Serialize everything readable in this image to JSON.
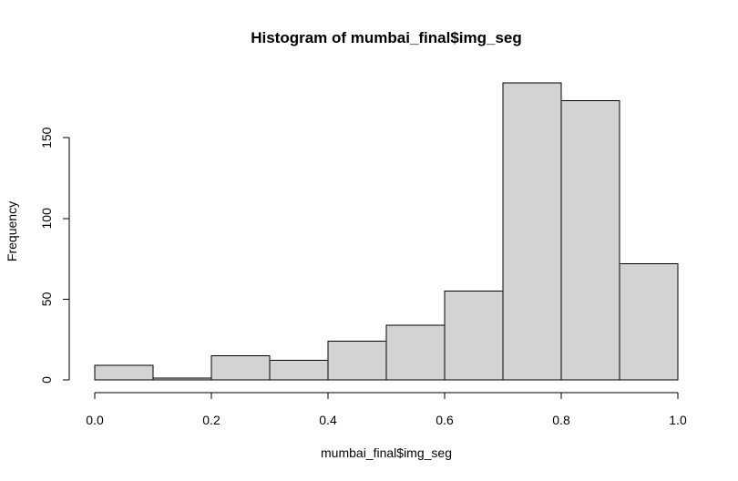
{
  "chart_data": {
    "type": "bar",
    "title": "Histogram of mumbai_final$img_seg",
    "xlabel": "mumbai_final$img_seg",
    "ylabel": "Frequency",
    "bins": [
      {
        "x0": 0.0,
        "x1": 0.1,
        "count": 9
      },
      {
        "x0": 0.1,
        "x1": 0.2,
        "count": 1
      },
      {
        "x0": 0.2,
        "x1": 0.3,
        "count": 15
      },
      {
        "x0": 0.3,
        "x1": 0.4,
        "count": 12
      },
      {
        "x0": 0.4,
        "x1": 0.5,
        "count": 24
      },
      {
        "x0": 0.5,
        "x1": 0.6,
        "count": 34
      },
      {
        "x0": 0.6,
        "x1": 0.7,
        "count": 55
      },
      {
        "x0": 0.7,
        "x1": 0.8,
        "count": 184
      },
      {
        "x0": 0.8,
        "x1": 0.9,
        "count": 173
      },
      {
        "x0": 0.9,
        "x1": 1.0,
        "count": 72
      }
    ],
    "xlim": [
      0.0,
      1.0
    ],
    "ylim": [
      0,
      184
    ],
    "xticks": [
      0.0,
      0.2,
      0.4,
      0.6,
      0.8,
      1.0
    ],
    "xtick_labels": [
      "0.0",
      "0.2",
      "0.4",
      "0.6",
      "0.8",
      "1.0"
    ],
    "yticks": [
      0,
      50,
      100,
      150
    ],
    "ytick_labels": [
      "0",
      "50",
      "100",
      "150"
    ],
    "grid": false,
    "colors": {
      "bar_fill": "#d3d3d3",
      "bar_stroke": "#000000",
      "axis": "#000000"
    }
  }
}
